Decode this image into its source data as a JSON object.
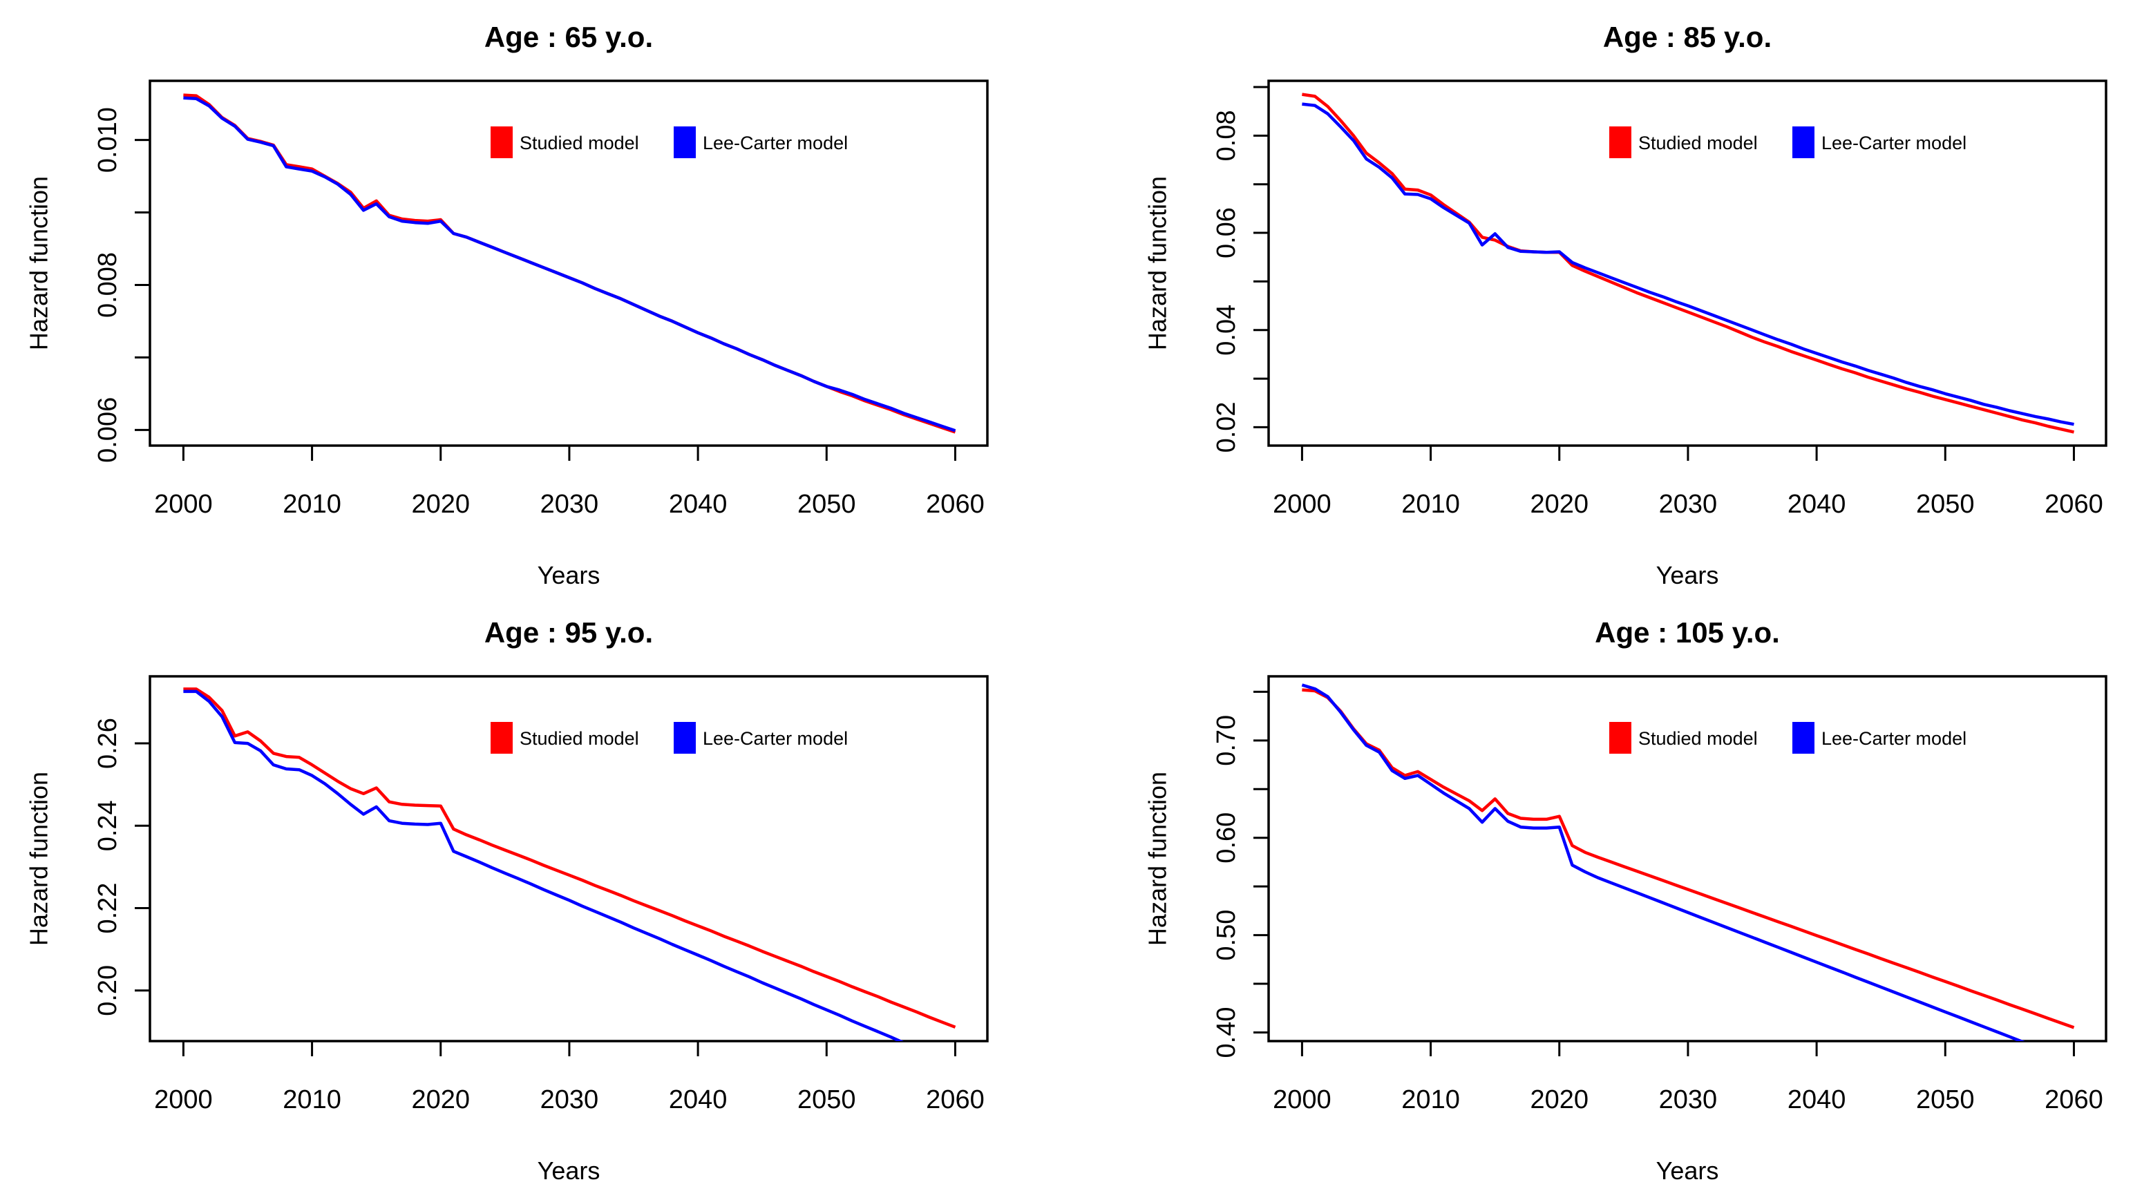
{
  "figure": {
    "background": "#FFFFFF",
    "axis_color": "#000000",
    "colors": {
      "studied": "#FF0000",
      "lee_carter": "#0000FF"
    }
  },
  "legend": {
    "position": "top-center-inside",
    "entries": [
      {
        "label": "Studied model",
        "color": "#FF0000"
      },
      {
        "label": "Lee-Carter model",
        "color": "#0000FF"
      }
    ]
  },
  "chart_data": [
    {
      "type": "line",
      "title": "Age : 65 y.o.",
      "xlabel": "Years",
      "ylabel": "Hazard function",
      "grid": false,
      "xlim": [
        1997.4,
        2062.5
      ],
      "ylim": [
        0.005784,
        0.010816
      ],
      "xticks": {
        "values": [
          2000,
          2010,
          2020,
          2030,
          2040,
          2050,
          2060
        ],
        "labels": [
          "2000",
          "2010",
          "2020",
          "2030",
          "2040",
          "2050",
          "2060"
        ]
      },
      "yticks": {
        "values": [
          0.006,
          0.008,
          0.01
        ],
        "labels": [
          "0.006",
          "0.008",
          "0.010"
        ],
        "minor": [
          0.007,
          0.009
        ]
      },
      "x_start": 2000,
      "x_step": 1,
      "series": [
        {
          "name": "Studied model",
          "color": "#FF0000",
          "values": [
            0.01062,
            0.01061,
            0.01049,
            0.01031,
            0.0102,
            0.01002,
            0.00998,
            0.00993,
            0.00966,
            0.00963,
            0.0096,
            0.0095,
            0.0094,
            0.00928,
            0.00906,
            0.00916,
            0.00896,
            0.00891,
            0.00889,
            0.00888,
            0.0089,
            0.00871,
            0.00866,
            0.00859,
            0.00852,
            0.00845,
            0.00838,
            0.00831,
            0.00824,
            0.00817,
            0.0081,
            0.00803,
            0.00795,
            0.00788,
            0.00781,
            0.00773,
            0.00765,
            0.00757,
            0.0075,
            0.00742,
            0.00734,
            0.00727,
            0.00719,
            0.00712,
            0.00704,
            0.00697,
            0.00689,
            0.00682,
            0.00675,
            0.00667,
            0.0066,
            0.00653,
            0.00647,
            0.0064,
            0.00634,
            0.00628,
            0.00621,
            0.00615,
            0.00609,
            0.00603,
            0.00597
          ]
        },
        {
          "name": "Lee-Carter model",
          "color": "#0000FF",
          "values": [
            0.01058,
            0.01057,
            0.01047,
            0.0103,
            0.01019,
            0.01001,
            0.00997,
            0.00992,
            0.00963,
            0.0096,
            0.00957,
            0.00949,
            0.00939,
            0.00925,
            0.00903,
            0.00912,
            0.00894,
            0.00888,
            0.00886,
            0.00885,
            0.00888,
            0.00871,
            0.00866,
            0.00859,
            0.00852,
            0.00845,
            0.00838,
            0.00831,
            0.00824,
            0.00817,
            0.0081,
            0.00803,
            0.00795,
            0.00788,
            0.00781,
            0.00773,
            0.00765,
            0.00757,
            0.0075,
            0.00742,
            0.00734,
            0.00727,
            0.00719,
            0.00712,
            0.00704,
            0.00697,
            0.00689,
            0.00682,
            0.00675,
            0.00667,
            0.0066,
            0.00655,
            0.00649,
            0.00642,
            0.00636,
            0.0063,
            0.00623,
            0.00617,
            0.00611,
            0.00605,
            0.00599
          ]
        }
      ]
    },
    {
      "type": "line",
      "title": "Age : 85 y.o.",
      "xlabel": "Years",
      "ylabel": "Hazard function",
      "grid": false,
      "xlim": [
        1997.4,
        2062.5
      ],
      "ylim": [
        0.01622,
        0.09128
      ],
      "xticks": {
        "values": [
          2000,
          2010,
          2020,
          2030,
          2040,
          2050,
          2060
        ],
        "labels": [
          "2000",
          "2010",
          "2020",
          "2030",
          "2040",
          "2050",
          "2060"
        ]
      },
      "yticks": {
        "values": [
          0.02,
          0.04,
          0.06,
          0.08
        ],
        "labels": [
          "0.02",
          "0.04",
          "0.06",
          "0.08"
        ],
        "minor": [
          0.03,
          0.05,
          0.07,
          0.09
        ]
      },
      "x_start": 2000,
      "x_step": 1,
      "series": [
        {
          "name": "Studied model",
          "color": "#FF0000",
          "values": [
            0.0885,
            0.0881,
            0.086,
            0.0831,
            0.08,
            0.0764,
            0.0744,
            0.0722,
            0.069,
            0.0688,
            0.0678,
            0.0658,
            0.064,
            0.0622,
            0.0591,
            0.0585,
            0.0572,
            0.0563,
            0.0561,
            0.056,
            0.056,
            0.0533,
            0.0521,
            0.051,
            0.0499,
            0.0488,
            0.0477,
            0.0467,
            0.0457,
            0.0447,
            0.0437,
            0.0427,
            0.0417,
            0.0407,
            0.0396,
            0.0385,
            0.0375,
            0.0366,
            0.0356,
            0.0347,
            0.0338,
            0.0329,
            0.032,
            0.0312,
            0.0303,
            0.0295,
            0.0287,
            0.0279,
            0.0272,
            0.0264,
            0.0257,
            0.025,
            0.0243,
            0.0236,
            0.0229,
            0.0222,
            0.0215,
            0.0209,
            0.0202,
            0.0196,
            0.019
          ]
        },
        {
          "name": "Lee-Carter model",
          "color": "#0000FF",
          "values": [
            0.0865,
            0.0862,
            0.0845,
            0.0818,
            0.079,
            0.0752,
            0.0735,
            0.0713,
            0.068,
            0.0679,
            0.067,
            0.0652,
            0.0636,
            0.062,
            0.0575,
            0.0598,
            0.057,
            0.0562,
            0.0561,
            0.056,
            0.0561,
            0.0539,
            0.0528,
            0.0518,
            0.0508,
            0.0498,
            0.0488,
            0.0478,
            0.0469,
            0.0459,
            0.045,
            0.044,
            0.043,
            0.042,
            0.041,
            0.04,
            0.039,
            0.038,
            0.0371,
            0.0361,
            0.0352,
            0.0343,
            0.0334,
            0.0326,
            0.0317,
            0.0309,
            0.0301,
            0.0292,
            0.0284,
            0.0277,
            0.0269,
            0.0262,
            0.0255,
            0.0247,
            0.0241,
            0.0234,
            0.0228,
            0.0222,
            0.0217,
            0.0211,
            0.0206
          ]
        }
      ]
    },
    {
      "type": "line",
      "title": "Age : 95 y.o.",
      "xlabel": "Years",
      "ylabel": "Hazard function",
      "grid": false,
      "xlim": [
        1997.4,
        2062.5
      ],
      "ylim": [
        0.18772,
        0.27628
      ],
      "xticks": {
        "values": [
          2000,
          2010,
          2020,
          2030,
          2040,
          2050,
          2060
        ],
        "labels": [
          "2000",
          "2010",
          "2020",
          "2030",
          "2040",
          "2050",
          "2060"
        ]
      },
      "yticks": {
        "values": [
          0.2,
          0.22,
          0.24,
          0.26
        ],
        "labels": [
          "0.20",
          "0.22",
          "0.24",
          "0.26"
        ],
        "minor": []
      },
      "x_start": 2000,
      "x_step": 1,
      "series": [
        {
          "name": "Studied model",
          "color": "#FF0000",
          "values": [
            0.2732,
            0.2732,
            0.2712,
            0.268,
            0.2618,
            0.2628,
            0.2606,
            0.2576,
            0.2568,
            0.2566,
            0.2548,
            0.2528,
            0.2508,
            0.249,
            0.2478,
            0.2492,
            0.2458,
            0.2452,
            0.245,
            0.2449,
            0.2448,
            0.2392,
            0.2378,
            0.2366,
            0.2353,
            0.2341,
            0.2329,
            0.2317,
            0.2304,
            0.2292,
            0.228,
            0.2268,
            0.2255,
            0.2243,
            0.2231,
            0.2218,
            0.2206,
            0.2194,
            0.2182,
            0.2169,
            0.2157,
            0.2145,
            0.2132,
            0.212,
            0.2108,
            0.2095,
            0.2083,
            0.2071,
            0.2059,
            0.2046,
            0.2034,
            0.2022,
            0.2009,
            0.1997,
            0.1985,
            0.1972,
            0.196,
            0.1948,
            0.1935,
            0.1923,
            0.1911
          ]
        },
        {
          "name": "Lee-Carter model",
          "color": "#0000FF",
          "values": [
            0.2726,
            0.2726,
            0.2702,
            0.2665,
            0.2602,
            0.26,
            0.2582,
            0.2548,
            0.2538,
            0.2536,
            0.2522,
            0.2502,
            0.2478,
            0.2452,
            0.2428,
            0.2446,
            0.2412,
            0.2406,
            0.2404,
            0.2403,
            0.2406,
            0.2338,
            0.2325,
            0.2312,
            0.2298,
            0.2285,
            0.2272,
            0.2259,
            0.2245,
            0.2232,
            0.2219,
            0.2205,
            0.2192,
            0.2179,
            0.2166,
            0.2152,
            0.2139,
            0.2126,
            0.2112,
            0.2099,
            0.2086,
            0.2073,
            0.2059,
            0.2046,
            0.2033,
            0.2019,
            0.2006,
            0.1993,
            0.198,
            0.1966,
            0.1953,
            0.194,
            0.1926,
            0.1913,
            0.19,
            0.1887,
            0.1873,
            0.186,
            0.1847,
            0.1833,
            0.182
          ]
        }
      ]
    },
    {
      "type": "line",
      "title": "Age : 105 y.o.",
      "xlabel": "Years",
      "ylabel": "Hazard function",
      "grid": false,
      "xlim": [
        1997.4,
        2062.5
      ],
      "ylim": [
        0.39112,
        0.76588
      ],
      "xticks": {
        "values": [
          2000,
          2010,
          2020,
          2030,
          2040,
          2050,
          2060
        ],
        "labels": [
          "2000",
          "2010",
          "2020",
          "2030",
          "2040",
          "2050",
          "2060"
        ]
      },
      "yticks": {
        "values": [
          0.4,
          0.5,
          0.6,
          0.7
        ],
        "labels": [
          "0.40",
          "0.50",
          "0.60",
          "0.70"
        ],
        "minor": [
          0.45,
          0.55,
          0.65,
          0.75
        ]
      },
      "x_start": 2000,
      "x_step": 1,
      "series": [
        {
          "name": "Studied model",
          "color": "#FF0000",
          "values": [
            0.752,
            0.751,
            0.744,
            0.73,
            0.712,
            0.6965,
            0.69,
            0.672,
            0.664,
            0.668,
            0.66,
            0.652,
            0.645,
            0.638,
            0.628,
            0.64,
            0.625,
            0.62,
            0.619,
            0.619,
            0.622,
            0.592,
            0.585,
            0.58,
            0.5753,
            0.5705,
            0.5658,
            0.5611,
            0.5564,
            0.5516,
            0.5469,
            0.5422,
            0.5374,
            0.5327,
            0.528,
            0.5232,
            0.5185,
            0.5138,
            0.5091,
            0.5043,
            0.4996,
            0.4949,
            0.4901,
            0.4854,
            0.4807,
            0.4759,
            0.4712,
            0.4665,
            0.4618,
            0.457,
            0.4523,
            0.4476,
            0.4428,
            0.4381,
            0.4334,
            0.4286,
            0.4239,
            0.4192,
            0.4145,
            0.4097,
            0.405
          ]
        },
        {
          "name": "Lee-Carter model",
          "color": "#0000FF",
          "values": [
            0.757,
            0.753,
            0.745,
            0.729,
            0.711,
            0.695,
            0.688,
            0.669,
            0.661,
            0.664,
            0.655,
            0.646,
            0.638,
            0.63,
            0.616,
            0.63,
            0.617,
            0.611,
            0.61,
            0.61,
            0.611,
            0.572,
            0.565,
            0.559,
            0.5539,
            0.5488,
            0.5437,
            0.5386,
            0.5335,
            0.5284,
            0.5232,
            0.5181,
            0.513,
            0.5079,
            0.5028,
            0.4977,
            0.4926,
            0.4875,
            0.4824,
            0.4773,
            0.4722,
            0.4671,
            0.462,
            0.4568,
            0.4517,
            0.4466,
            0.4415,
            0.4364,
            0.4313,
            0.4262,
            0.4211,
            0.416,
            0.4109,
            0.4058,
            0.4007,
            0.3956,
            0.3904,
            0.3853,
            0.3802,
            0.3751,
            0.37
          ]
        }
      ]
    }
  ]
}
